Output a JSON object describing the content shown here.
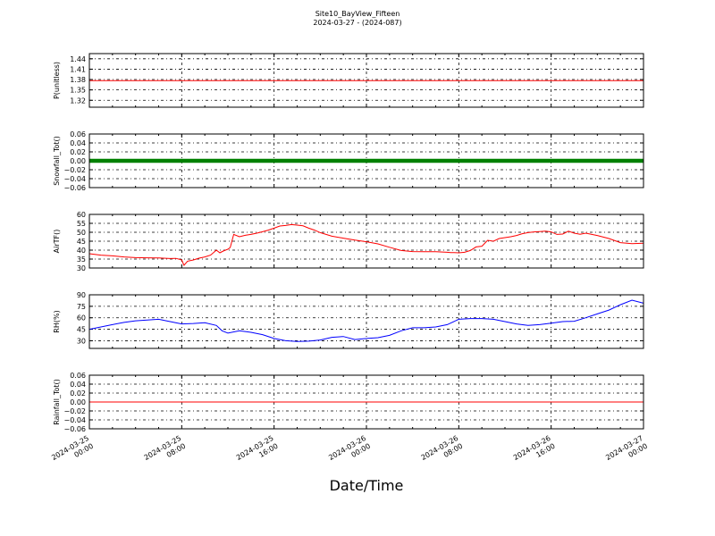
{
  "figure": {
    "title_line1": "Site10_BayView_Fifteen",
    "title_line2": "2024-03-27 - (2024-087)",
    "xlabel": "Date/Time"
  },
  "chart_data": [
    {
      "type": "line",
      "ylabel": "P(unitless)",
      "ylim": [
        1.3,
        1.455
      ],
      "yticks": [
        1.32,
        1.35,
        1.38,
        1.41,
        1.44
      ],
      "ytick_labels": [
        "1.32",
        "1.35",
        "1.38",
        "1.41",
        "1.44"
      ],
      "xlim": [
        "2024-03-25 00:00",
        "2024-03-27 00:00"
      ],
      "grid": true,
      "series": [
        {
          "color": "#ff0000",
          "marker": false,
          "x_hours": [
            0,
            48
          ],
          "y": [
            1.377,
            1.377
          ]
        }
      ]
    },
    {
      "type": "line",
      "ylabel": "Snowfall_Tot()",
      "ylim": [
        -0.06,
        0.06
      ],
      "yticks": [
        -0.06,
        -0.04,
        -0.02,
        0.0,
        0.02,
        0.04,
        0.06
      ],
      "ytick_labels": [
        "−0.06",
        "−0.04",
        "−0.02",
        "0.00",
        "0.02",
        "0.04",
        "0.06"
      ],
      "xlim": [
        "2024-03-25 00:00",
        "2024-03-27 00:00"
      ],
      "grid": true,
      "series": [
        {
          "color": "#008000",
          "marker": true,
          "x_hours": [
            0,
            48
          ],
          "y": [
            0,
            0
          ]
        }
      ]
    },
    {
      "type": "line",
      "ylabel": "AirTF()",
      "ylim": [
        30,
        60
      ],
      "yticks": [
        30,
        35,
        40,
        45,
        50,
        55,
        60
      ],
      "ytick_labels": [
        "30",
        "35",
        "40",
        "45",
        "50",
        "55",
        "60"
      ],
      "xlim": [
        "2024-03-25 00:00",
        "2024-03-27 00:00"
      ],
      "grid": true,
      "series": [
        {
          "color": "#ff0000",
          "marker": false,
          "x_hours": [
            0,
            1,
            2,
            3,
            4,
            5,
            6,
            7,
            7.5,
            8,
            8.2,
            8.5,
            9,
            9.5,
            10,
            10.5,
            11,
            11.3,
            11.6,
            12,
            12.2,
            12.5,
            13,
            13.5,
            14,
            14.5,
            15,
            15.5,
            16,
            16.5,
            17,
            17.5,
            18,
            18.5,
            19,
            19.5,
            20,
            21,
            22,
            23,
            24,
            25,
            26,
            27,
            28,
            29,
            30,
            31,
            31.3,
            31.6,
            32,
            32.5,
            33,
            33.5,
            34,
            34.5,
            35,
            35.5,
            36,
            36.5,
            37,
            37.5,
            38,
            38.5,
            39,
            39.5,
            40,
            40.5,
            41,
            41.5,
            42,
            42.5,
            43,
            44,
            45,
            46,
            47,
            48
          ],
          "y": [
            38,
            37.2,
            36.8,
            36.2,
            35.8,
            35.7,
            35.6,
            35.3,
            35.4,
            34.5,
            31.5,
            33.8,
            34.5,
            35.5,
            36.2,
            37.2,
            40,
            38.5,
            39.5,
            40.5,
            41.5,
            48.8,
            47.5,
            48.3,
            48.8,
            49.5,
            50.3,
            51.2,
            52.3,
            53.5,
            53.8,
            54.3,
            54,
            53.6,
            52.3,
            51.2,
            49.8,
            47.8,
            46.7,
            45.6,
            44.7,
            43.5,
            41.6,
            39.8,
            39.2,
            39.1,
            39.1,
            38.8,
            38.6,
            38.6,
            38.5,
            38.8,
            39.8,
            41.8,
            42.2,
            45.5,
            45,
            46.5,
            47,
            47.5,
            48.2,
            49.2,
            49.8,
            50.2,
            50.4,
            50.6,
            50.2,
            48.8,
            49,
            50.6,
            49.5,
            48.9,
            49.5,
            48.2,
            46.5,
            44.2,
            43.6,
            43.9
          ]
        }
      ]
    },
    {
      "type": "line",
      "ylabel": "RH(%)",
      "ylim": [
        20,
        90
      ],
      "yticks": [
        30,
        45,
        60,
        75,
        90
      ],
      "ytick_labels": [
        "30",
        "45",
        "60",
        "75",
        "90"
      ],
      "xlim": [
        "2024-03-25 00:00",
        "2024-03-27 00:00"
      ],
      "grid": true,
      "series": [
        {
          "color": "#0000ff",
          "marker": false,
          "x_hours": [
            0,
            1,
            2,
            3,
            4,
            5,
            6,
            7,
            8,
            9,
            10,
            11,
            11.5,
            12,
            13,
            14,
            15,
            16,
            17,
            18,
            19,
            20,
            21,
            22,
            23,
            24,
            25,
            26,
            27,
            28,
            29,
            30,
            31,
            32,
            33,
            34,
            35,
            36,
            37,
            38,
            39,
            40,
            41,
            42,
            43,
            44,
            45,
            46,
            47,
            48
          ],
          "y": [
            45,
            48,
            51,
            54,
            56,
            57,
            58,
            55,
            52,
            52.5,
            53.5,
            50,
            43,
            40,
            43,
            41,
            38,
            33,
            30,
            29,
            29.5,
            31,
            34.5,
            35.5,
            31.5,
            33,
            34,
            37,
            43,
            47,
            47,
            48,
            51,
            58,
            59,
            59,
            58,
            55,
            52,
            50,
            51,
            53,
            55,
            55.5,
            60,
            65,
            70,
            77,
            83,
            79
          ]
        }
      ]
    },
    {
      "type": "line",
      "ylabel": "Rainfall_Tot()",
      "ylim": [
        -0.06,
        0.06
      ],
      "yticks": [
        -0.06,
        -0.04,
        -0.02,
        0.0,
        0.02,
        0.04,
        0.06
      ],
      "ytick_labels": [
        "−0.06",
        "−0.04",
        "−0.02",
        "0.00",
        "0.02",
        "0.04",
        "0.06"
      ],
      "xlim": [
        "2024-03-25 00:00",
        "2024-03-27 00:00"
      ],
      "grid": true,
      "series": [
        {
          "color": "#ff0000",
          "marker": false,
          "x_hours": [
            0,
            48
          ],
          "y": [
            0,
            0
          ]
        }
      ]
    }
  ],
  "x_axis": {
    "ticks_hours": [
      0,
      8,
      16,
      24,
      32,
      40,
      48
    ],
    "tick_label_date": [
      "2024-03-25",
      "2024-03-25",
      "2024-03-25",
      "2024-03-26",
      "2024-03-26",
      "2024-03-26",
      "2024-03-27"
    ],
    "tick_label_time": [
      "00:00",
      "08:00",
      "16:00",
      "00:00",
      "08:00",
      "16:00",
      "00:00"
    ]
  }
}
